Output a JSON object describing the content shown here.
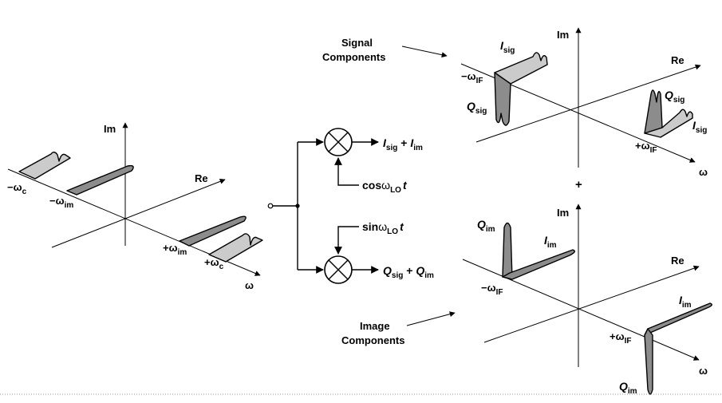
{
  "colors": {
    "light_spectrum": "#cbcbcb",
    "dark_spectrum": "#8c8c8c",
    "ink": "#000000",
    "footer_rule": "#9a9a9a"
  },
  "input_plot": {
    "im": "Im",
    "re": "Re",
    "omega": "ω",
    "neg_wc": {
      "sym": "−ω",
      "sub": "c"
    },
    "neg_wim": {
      "sym": "−ω",
      "sub": "im"
    },
    "pos_wim": {
      "sym": "+ω",
      "sub": "im"
    },
    "pos_wc": {
      "sym": "+ω",
      "sub": "c"
    }
  },
  "mixer_block": {
    "out_i": {
      "a": "I",
      "a_sub": "sig",
      "plus": " + ",
      "b": "I",
      "b_sub": "im"
    },
    "out_q": {
      "a": "Q",
      "a_sub": "sig",
      "plus": " + ",
      "b": "Q",
      "b_sub": "im"
    },
    "lo_cos": {
      "fn": "cos",
      "w": "ω",
      "sub": "LO",
      "t": "t"
    },
    "lo_sin": {
      "fn": "sin",
      "w": "ω",
      "sub": "LO",
      "t": "t"
    }
  },
  "signal_plot": {
    "heading_line1": "Signal",
    "heading_line2": "Components",
    "im": "Im",
    "re": "Re",
    "omega": "ω",
    "i_left": {
      "sym": "I",
      "sub": "sig"
    },
    "q_left": {
      "sym": "Q",
      "sub": "sig"
    },
    "neg_wif": {
      "sym": "−ω",
      "sub": "IF"
    },
    "q_right": {
      "sym": "Q",
      "sub": "sig"
    },
    "i_right": {
      "sym": "I",
      "sub": "sig"
    },
    "pos_wif": {
      "sym": "+ω",
      "sub": "IF"
    }
  },
  "plus_sign": "+",
  "image_plot": {
    "heading_line1": "Image",
    "heading_line2": "Components",
    "im": "Im",
    "re": "Re",
    "omega": "ω",
    "q_left": {
      "sym": "Q",
      "sub": "im"
    },
    "i_left": {
      "sym": "I",
      "sub": "im"
    },
    "neg_wif": {
      "sym": "−ω",
      "sub": "IF"
    },
    "i_right": {
      "sym": "I",
      "sub": "im"
    },
    "pos_wif": {
      "sym": "+ω",
      "sub": "IF"
    },
    "q_right": {
      "sym": "Q",
      "sub": "im"
    }
  }
}
